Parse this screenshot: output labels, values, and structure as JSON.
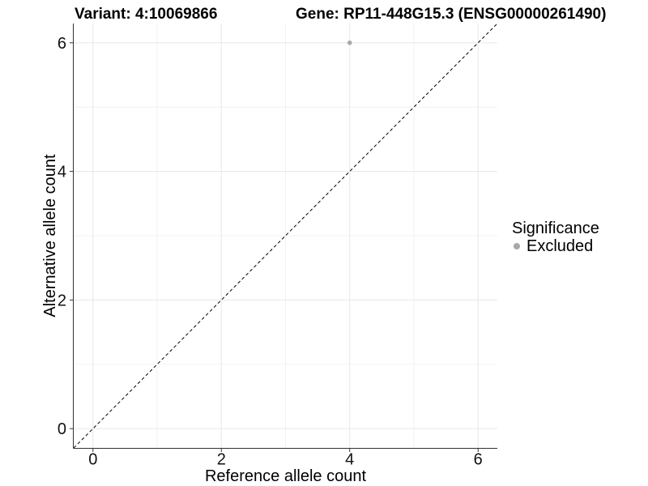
{
  "titles": {
    "variant": "Variant: 4:10069866",
    "gene": "Gene: RP11-448G15.3 (ENSG00000261490)"
  },
  "chart_data": {
    "type": "scatter",
    "xlabel": "Reference allele count",
    "ylabel": "Alternative allele count",
    "xlim": [
      -0.3,
      6.3
    ],
    "ylim": [
      -0.3,
      6.3
    ],
    "xticks": [
      0,
      2,
      4,
      6
    ],
    "yticks": [
      0,
      2,
      4,
      6
    ],
    "minor_ticks": [
      1,
      3,
      5
    ],
    "grid": true,
    "identity_line": {
      "slope": 1,
      "intercept": 0,
      "style": "dashed",
      "color": "#000000"
    },
    "series": [
      {
        "name": "Excluded",
        "color": "#a8a8a8",
        "points": [
          {
            "x": 4,
            "y": 6
          }
        ]
      }
    ],
    "legend": {
      "title": "Significance",
      "position": "right",
      "items": [
        {
          "label": "Excluded",
          "color": "#a8a8a8"
        }
      ]
    }
  },
  "colors": {
    "grid_major": "#e7e7e7",
    "grid_minor": "#f2f2f2",
    "axis_line": "#333333",
    "point": "#a8a8a8"
  }
}
